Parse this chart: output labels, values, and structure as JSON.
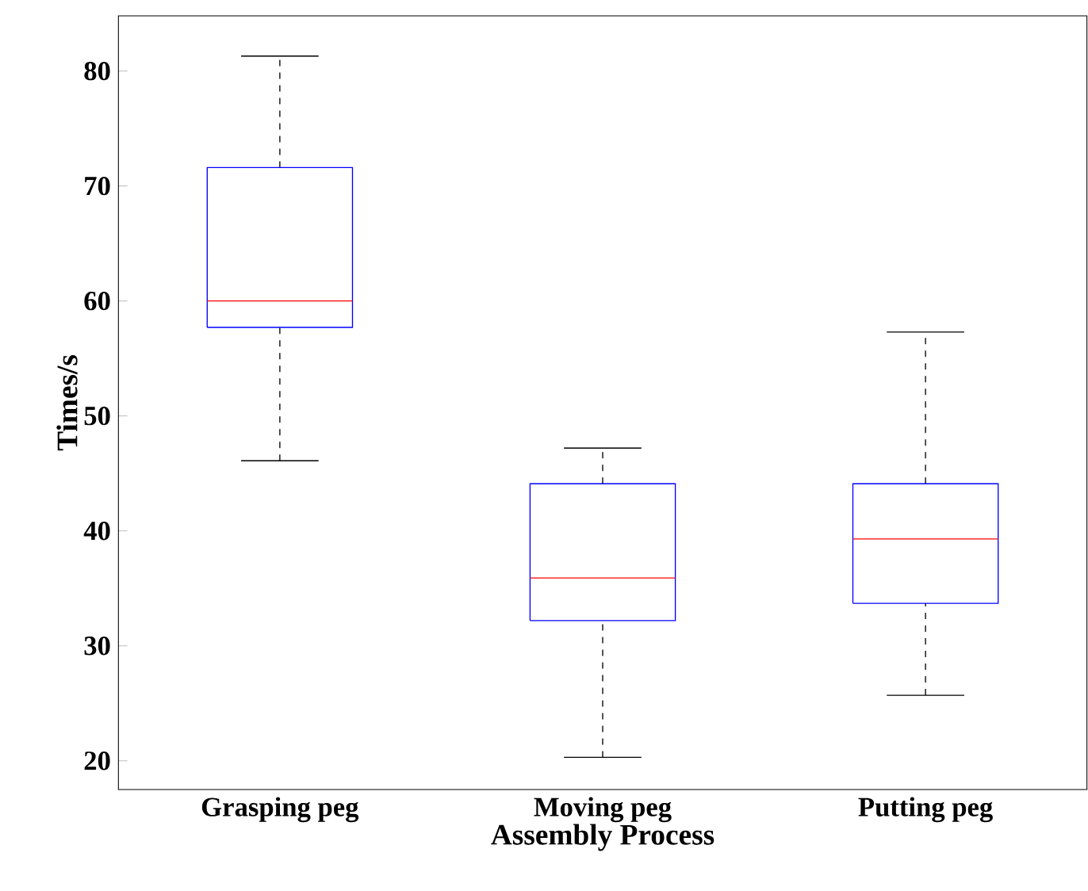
{
  "chart_data": {
    "type": "box",
    "xlabel": "Assembly Process",
    "ylabel": "Times/s",
    "categories": [
      "Grasping peg",
      "Moving peg",
      "Putting peg"
    ],
    "series": [
      {
        "color": "#0000ff",
        "boxes": [
          {
            "low": 46.1,
            "q1": 57.7,
            "median": 60.0,
            "q3": 71.6,
            "high": 81.3
          },
          {
            "low": 20.3,
            "q1": 32.2,
            "median": 35.9,
            "q3": 44.1,
            "high": 47.2
          },
          {
            "low": 25.7,
            "q1": 33.7,
            "median": 39.3,
            "q3": 44.1,
            "high": 57.3
          }
        ]
      }
    ],
    "ylim": [
      17.5,
      84.8
    ],
    "yticks": [
      20,
      30,
      40,
      50,
      60,
      70,
      80
    ]
  }
}
